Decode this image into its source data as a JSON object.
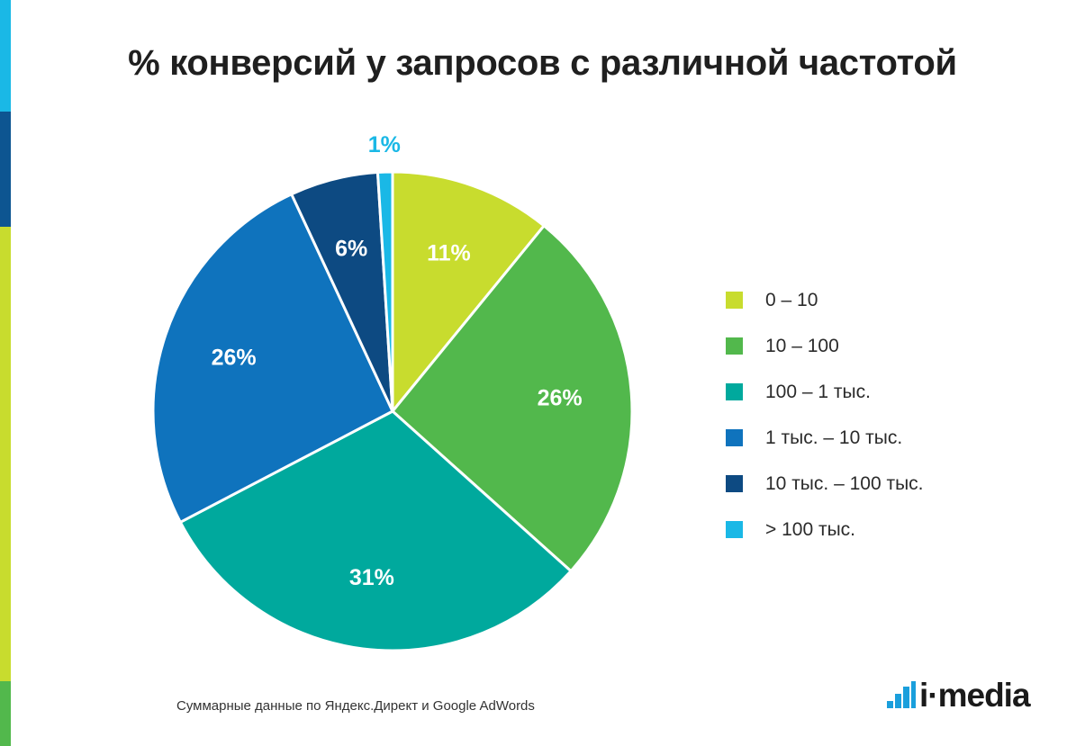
{
  "title": "% конверсий у запросов с различной частотой",
  "chart_data": {
    "type": "pie",
    "title": "% конверсий у запросов с различной частотой",
    "categories": [
      "0 – 10",
      "10 – 100",
      "100 – 1 тыс.",
      "1 тыс. – 10 тыс.",
      "10 тыс. – 100 тыс.",
      "> 100 тыс."
    ],
    "values": [
      11,
      26,
      31,
      26,
      6,
      1
    ],
    "labels": [
      "11%",
      "26%",
      "31%",
      "26%",
      "6%",
      "1%"
    ],
    "colors": [
      "#c8dc2e",
      "#52b84c",
      "#00a99d",
      "#0f73bd",
      "#0d4a82",
      "#1ab8e6"
    ],
    "label_colors": [
      "#ffffff",
      "#ffffff",
      "#ffffff",
      "#ffffff",
      "#ffffff",
      "#1ab8e6"
    ],
    "legend_position": "right"
  },
  "legend": [
    {
      "label": "0 – 10"
    },
    {
      "label": "10 – 100"
    },
    {
      "label": "100 – 1 тыс."
    },
    {
      "label": "1 тыс. – 10 тыс."
    },
    {
      "label": "10 тыс. – 100 тыс."
    },
    {
      "label": "> 100 тыс."
    }
  ],
  "footnote": "Суммарные данные по Яндекс.Директ и Google AdWords",
  "logo": {
    "text": "i·media",
    "icon": "bar-chart-logo-icon"
  }
}
